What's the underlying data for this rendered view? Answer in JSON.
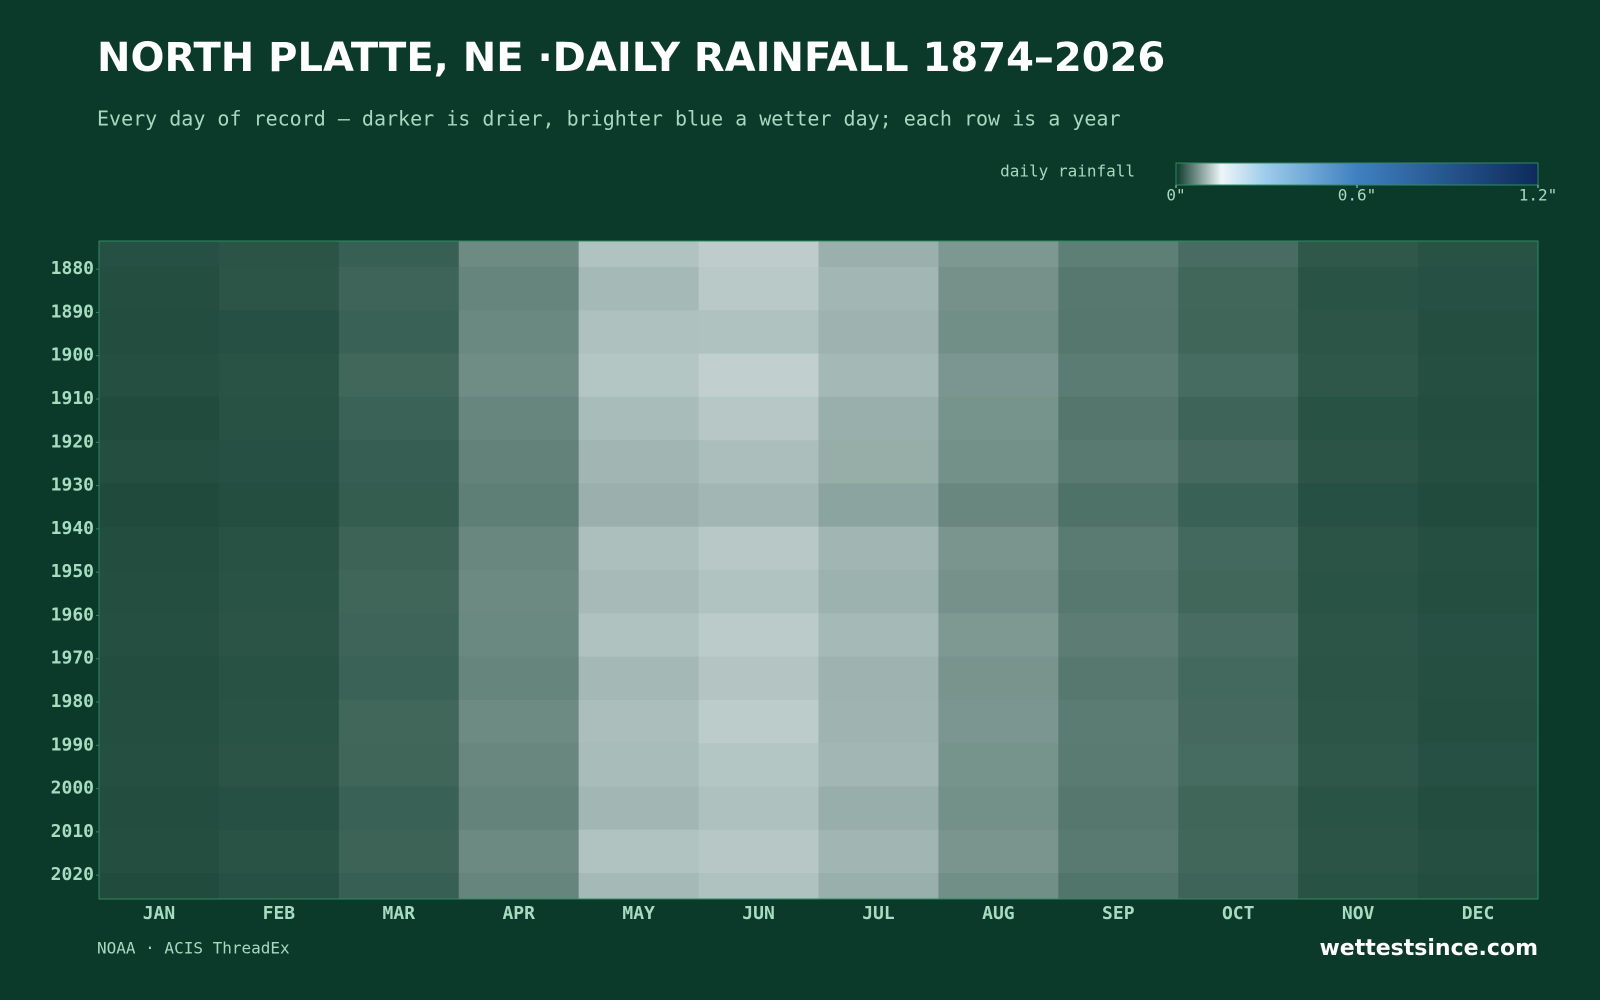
{
  "chart_data": {
    "type": "heatmap",
    "title": "NORTH PLATTE, NE ·DAILY RAINFALL 1874–2026",
    "subtitle": "Every day of record — darker is drier, brighter blue a wetter day; each row is a year",
    "source": "NOAA · ACIS ThreadEx",
    "brand": "wettestsince.com",
    "categories": [
      "JAN",
      "FEB",
      "MAR",
      "APR",
      "MAY",
      "JUN",
      "JUL",
      "AUG",
      "SEP",
      "OCT",
      "NOV",
      "DEC"
    ],
    "y": [
      1874,
      1880,
      1890,
      1900,
      1910,
      1920,
      1930,
      1940,
      1950,
      1960,
      1970,
      1980,
      1990,
      2000,
      2010,
      2020
    ],
    "ylim": [
      1874,
      2026
    ],
    "yticks": [
      1880,
      1890,
      1900,
      1910,
      1920,
      1930,
      1940,
      1950,
      1960,
      1970,
      1980,
      1990,
      2000,
      2010,
      2020
    ],
    "z": [
      [
        0.018,
        0.021,
        0.03,
        0.065,
        0.11,
        0.118,
        0.095,
        0.075,
        0.055,
        0.04,
        0.024,
        0.019
      ],
      [
        0.016,
        0.022,
        0.034,
        0.06,
        0.102,
        0.115,
        0.1,
        0.07,
        0.05,
        0.036,
        0.02,
        0.018
      ],
      [
        0.015,
        0.018,
        0.031,
        0.063,
        0.108,
        0.109,
        0.097,
        0.068,
        0.049,
        0.035,
        0.022,
        0.016
      ],
      [
        0.017,
        0.02,
        0.036,
        0.066,
        0.112,
        0.12,
        0.101,
        0.074,
        0.053,
        0.039,
        0.023,
        0.017
      ],
      [
        0.014,
        0.019,
        0.032,
        0.061,
        0.104,
        0.113,
        0.094,
        0.071,
        0.048,
        0.034,
        0.019,
        0.015
      ],
      [
        0.016,
        0.018,
        0.029,
        0.058,
        0.099,
        0.106,
        0.092,
        0.069,
        0.051,
        0.038,
        0.021,
        0.016
      ],
      [
        0.013,
        0.016,
        0.027,
        0.055,
        0.095,
        0.1,
        0.085,
        0.062,
        0.045,
        0.031,
        0.018,
        0.014
      ],
      [
        0.015,
        0.019,
        0.033,
        0.062,
        0.107,
        0.114,
        0.099,
        0.073,
        0.052,
        0.037,
        0.021,
        0.017
      ],
      [
        0.016,
        0.02,
        0.035,
        0.064,
        0.103,
        0.11,
        0.096,
        0.07,
        0.05,
        0.036,
        0.02,
        0.016
      ],
      [
        0.017,
        0.021,
        0.034,
        0.063,
        0.109,
        0.116,
        0.102,
        0.076,
        0.054,
        0.04,
        0.022,
        0.018
      ],
      [
        0.015,
        0.019,
        0.032,
        0.06,
        0.101,
        0.111,
        0.097,
        0.072,
        0.05,
        0.037,
        0.021,
        0.017
      ],
      [
        0.016,
        0.02,
        0.036,
        0.065,
        0.106,
        0.117,
        0.098,
        0.074,
        0.053,
        0.038,
        0.022,
        0.016
      ],
      [
        0.017,
        0.021,
        0.035,
        0.062,
        0.104,
        0.112,
        0.1,
        0.071,
        0.052,
        0.039,
        0.023,
        0.018
      ],
      [
        0.015,
        0.018,
        0.031,
        0.059,
        0.1,
        0.108,
        0.093,
        0.069,
        0.049,
        0.035,
        0.02,
        0.015
      ],
      [
        0.016,
        0.02,
        0.033,
        0.064,
        0.11,
        0.113,
        0.099,
        0.073,
        0.051,
        0.036,
        0.021,
        0.017
      ],
      [
        0.014,
        0.018,
        0.03,
        0.06,
        0.102,
        0.109,
        0.094,
        0.068,
        0.047,
        0.034,
        0.019,
        0.015
      ]
    ],
    "colorbar": {
      "label": "daily rainfall",
      "range": [
        0,
        1.2
      ],
      "ticks": [
        {
          "value": 0,
          "label": "0\""
        },
        {
          "value": 0.6,
          "label": "0.6\""
        },
        {
          "value": 1.2,
          "label": "1.2\""
        }
      ],
      "colorscale": [
        [
          0,
          "#0b3a2a"
        ],
        [
          0.15,
          "#eef5f8"
        ],
        [
          0.3,
          "#9ccbea"
        ],
        [
          0.6,
          "#3f80c0"
        ],
        [
          1.2,
          "#0d2a5a"
        ]
      ]
    }
  }
}
